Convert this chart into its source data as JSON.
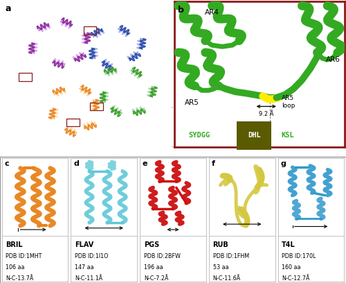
{
  "panel_labels": [
    "a",
    "b",
    "c",
    "d",
    "e",
    "f",
    "g"
  ],
  "bottom_labels": [
    {
      "name": "BRIL",
      "pdb": "PDB ID:1MHT",
      "aa": "106 aa",
      "nc": "N-C-13.7Å"
    },
    {
      "name": "FLAV",
      "pdb": "PDB ID:1I1O",
      "aa": "147 aa",
      "nc": "N-C-11.1Å"
    },
    {
      "name": "PGS",
      "pdb": "PDB ID:2BFW",
      "aa": "196 aa",
      "nc": "N-C-7.2Å"
    },
    {
      "name": "RUB",
      "pdb": "PDB ID:1FHM",
      "aa": "53 aa",
      "nc": "N-C-11.6Å"
    },
    {
      "name": "T4L",
      "pdb": "PDB ID:170L",
      "aa": "160 aa",
      "nc": "N-C-12.7Å"
    }
  ],
  "protein_colors": {
    "BRIL": "#E8821A",
    "FLAV": "#5FC8D8",
    "PGS": "#CC1111",
    "RUB": "#D4C840",
    "T4L": "#3399CC"
  },
  "tetramer_colors": [
    "#882299",
    "#2244AA",
    "#339922",
    "#E8821A"
  ],
  "tetramer_light": [
    "#CC88EE",
    "#8899DD",
    "#88CC88",
    "#FFCC88"
  ],
  "ankyrin_color": "#33AA22",
  "loop_color": "#FFEE00",
  "sequence_text": "SYDGG",
  "sequence_highlighted": "DHL",
  "sequence_tail": "KSL",
  "distance_label": "9.2 Å",
  "background_color": "#FFFFFF",
  "border_color": "#8B1A1A",
  "figure_width": 5.0,
  "figure_height": 4.08
}
